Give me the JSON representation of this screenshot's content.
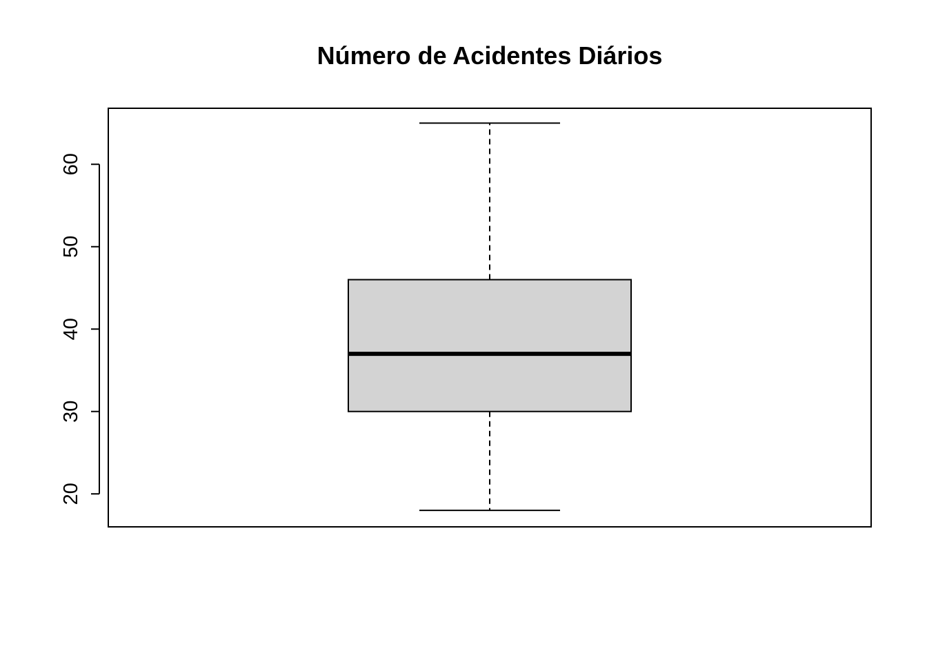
{
  "chart_data": {
    "type": "boxplot",
    "title": "Número de Acidentes Diários",
    "xlabel": "",
    "ylabel": "",
    "y_ticks": [
      20,
      30,
      40,
      50,
      60
    ],
    "ylim": [
      16,
      66.8
    ],
    "grid": false,
    "box": {
      "min": 18,
      "q1": 30,
      "median": 37,
      "q3": 46,
      "max": 65
    },
    "colors": {
      "box_fill": "#d3d3d3",
      "line": "#000000",
      "background": "#ffffff"
    }
  }
}
